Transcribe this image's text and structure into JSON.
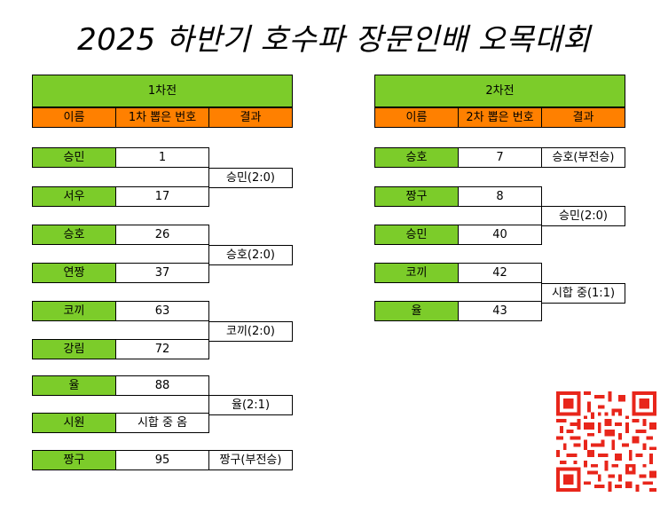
{
  "title": "2025 하반기 호수파 장문인배 오목대회",
  "round1": {
    "header": "1차전",
    "columns": [
      "이름",
      "1차 뽑은 번호",
      "결과"
    ],
    "matches": [
      {
        "p1": "승민",
        "n1": "1",
        "p2": "서우",
        "n2": "17",
        "result": "승민(2:0)"
      },
      {
        "p1": "승호",
        "n1": "26",
        "p2": "연짱",
        "n2": "37",
        "result": "승호(2:0)"
      },
      {
        "p1": "코끼",
        "n1": "63",
        "p2": "강림",
        "n2": "72",
        "result": "코끼(2:0)"
      },
      {
        "p1": "율",
        "n1": "88",
        "p2": "시원",
        "n2": "시합 중 옴",
        "result": "율(2:1)"
      },
      {
        "p1": "짱구",
        "n1": "95",
        "result": "짱구(부전승)"
      }
    ]
  },
  "round2": {
    "header": "2차전",
    "columns": [
      "이름",
      "2차 뽑은 번호",
      "결과"
    ],
    "matches": [
      {
        "p1": "승호",
        "n1": "7",
        "result": "승호(부전승)"
      },
      {
        "p1": "짱구",
        "n1": "8",
        "p2": "승민",
        "n2": "40",
        "result": "승민(2:0)"
      },
      {
        "p1": "코끼",
        "n1": "42",
        "p2": "율",
        "n2": "43",
        "result": "시합 중(1:1)"
      }
    ]
  },
  "qr_icon": "qr-code-icon"
}
